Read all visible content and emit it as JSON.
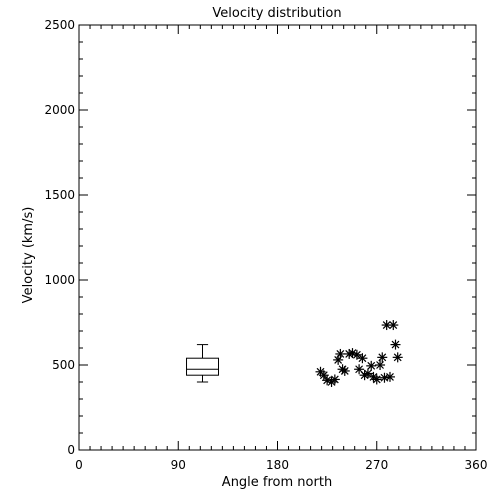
{
  "chart_data": {
    "type": "scatter",
    "title": "Velocity distribution",
    "xlabel": "Angle from north",
    "ylabel": "Velocity (km/s)",
    "xlim": [
      0,
      360
    ],
    "ylim": [
      0,
      2500
    ],
    "xticks": [
      0,
      90,
      180,
      270,
      360
    ],
    "yticks": [
      0,
      500,
      1000,
      1500,
      2000,
      2500
    ],
    "grid": false,
    "legend": "none",
    "series": [
      {
        "marker": "asterisk",
        "points": [
          {
            "x": 219,
            "y": 460
          },
          {
            "x": 222,
            "y": 440
          },
          {
            "x": 225,
            "y": 410
          },
          {
            "x": 229,
            "y": 400
          },
          {
            "x": 232,
            "y": 415
          },
          {
            "x": 235,
            "y": 530
          },
          {
            "x": 237,
            "y": 565
          },
          {
            "x": 239,
            "y": 475
          },
          {
            "x": 241,
            "y": 465
          },
          {
            "x": 245,
            "y": 565
          },
          {
            "x": 248,
            "y": 570
          },
          {
            "x": 252,
            "y": 560
          },
          {
            "x": 254,
            "y": 475
          },
          {
            "x": 257,
            "y": 540
          },
          {
            "x": 259,
            "y": 440
          },
          {
            "x": 262,
            "y": 450
          },
          {
            "x": 265,
            "y": 495
          },
          {
            "x": 267,
            "y": 430
          },
          {
            "x": 270,
            "y": 415
          },
          {
            "x": 273,
            "y": 500
          },
          {
            "x": 275,
            "y": 545
          },
          {
            "x": 277,
            "y": 425
          },
          {
            "x": 279,
            "y": 735
          },
          {
            "x": 282,
            "y": 430
          },
          {
            "x": 285,
            "y": 735
          },
          {
            "x": 287,
            "y": 620
          },
          {
            "x": 289,
            "y": 545
          }
        ]
      }
    ],
    "boxplot": {
      "x": 112,
      "width_deg": 29,
      "whisker_low": 400,
      "q1": 440,
      "median": 475,
      "q3": 540,
      "whisker_high": 620
    }
  }
}
